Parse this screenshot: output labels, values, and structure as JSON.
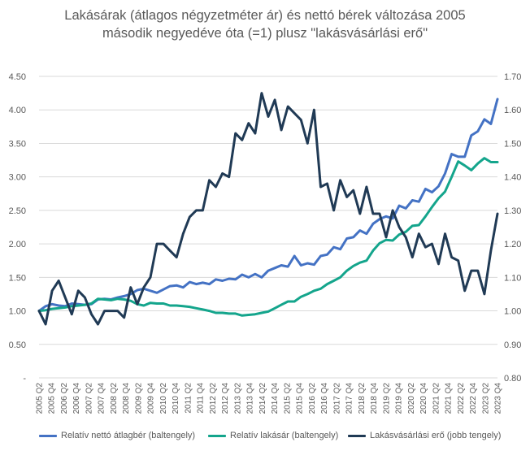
{
  "chart_data": {
    "type": "line",
    "title_line1": "Lakásárak (átlagos négyzetméter ár) és nettó bérek változása 2005",
    "title_line2": "második negyedéve óta (=1) plusz \"lakásvásárlási erő\"",
    "x_tick_labels": [
      "2005 Q2",
      "2005 Q4",
      "2006 Q2",
      "2006 Q4",
      "2007 Q2",
      "2007 Q4",
      "2008 Q2",
      "2008 Q4",
      "2009 Q2",
      "2009 Q4",
      "2010 Q2",
      "2010 Q4",
      "2011 Q2",
      "2011 Q4",
      "2012 Q2",
      "2012 Q4",
      "2013 Q2",
      "2013 Q4",
      "2014 Q2",
      "2014 Q4",
      "2015 Q2",
      "2015 Q4",
      "2016 Q2",
      "2016 Q4",
      "2017 Q2",
      "2017 Q4",
      "2018 Q2",
      "2018 Q4",
      "2019 Q2",
      "2019 Q4",
      "2020 Q2",
      "2020 Q4",
      "2021 Q2",
      "2021 Q4",
      "2022 Q2",
      "2022 Q4",
      "2023 Q2",
      "2023 Q4"
    ],
    "y_left": {
      "ylim": [
        0,
        4.5
      ],
      "tick_labels": [
        "-",
        "0.50",
        "1.00",
        "1.50",
        "2.00",
        "2.50",
        "3.00",
        "3.50",
        "4.00",
        "4.50"
      ]
    },
    "y_right": {
      "ylim": [
        0.8,
        1.7
      ],
      "tick_labels": [
        "0.80",
        "0.90",
        "1.00",
        "1.10",
        "1.20",
        "1.30",
        "1.40",
        "1.50",
        "1.60",
        "1.70"
      ]
    },
    "grid": "horizontal",
    "legend_position": "bottom",
    "series": [
      {
        "name": "Relatív nettó átlagbér (baltengely)",
        "axis": "left",
        "color": "#4472c4",
        "values": [
          1.0,
          1.07,
          1.1,
          1.08,
          1.07,
          1.11,
          1.1,
          1.09,
          1.1,
          1.17,
          1.18,
          1.17,
          1.2,
          1.22,
          1.25,
          1.31,
          1.33,
          1.3,
          1.27,
          1.32,
          1.37,
          1.38,
          1.35,
          1.43,
          1.4,
          1.42,
          1.4,
          1.47,
          1.45,
          1.48,
          1.47,
          1.54,
          1.5,
          1.55,
          1.5,
          1.6,
          1.64,
          1.68,
          1.66,
          1.82,
          1.68,
          1.71,
          1.69,
          1.82,
          1.84,
          1.95,
          1.92,
          2.08,
          2.1,
          2.2,
          2.15,
          2.3,
          2.37,
          2.41,
          2.38,
          2.57,
          2.53,
          2.65,
          2.63,
          2.82,
          2.77,
          2.86,
          3.05,
          3.34,
          3.3,
          3.3,
          3.62,
          3.68,
          3.86,
          3.79,
          4.16
        ]
      },
      {
        "name": "Relatív lakásár (baltengely)",
        "axis": "left",
        "color": "#14a58c",
        "values": [
          1.0,
          1.01,
          1.03,
          1.04,
          1.05,
          1.07,
          1.08,
          1.09,
          1.11,
          1.18,
          1.17,
          1.16,
          1.18,
          1.17,
          1.15,
          1.1,
          1.08,
          1.12,
          1.11,
          1.11,
          1.08,
          1.08,
          1.07,
          1.06,
          1.04,
          1.02,
          1.0,
          0.97,
          0.97,
          0.96,
          0.96,
          0.93,
          0.94,
          0.95,
          0.97,
          0.99,
          1.04,
          1.09,
          1.14,
          1.14,
          1.21,
          1.25,
          1.3,
          1.33,
          1.4,
          1.45,
          1.5,
          1.6,
          1.67,
          1.72,
          1.75,
          1.9,
          2.01,
          2.06,
          2.05,
          2.14,
          2.18,
          2.27,
          2.28,
          2.41,
          2.55,
          2.68,
          2.78,
          3.0,
          3.23,
          3.17,
          3.1,
          3.2,
          3.28,
          3.22,
          3.22
        ]
      },
      {
        "name": "Lakásvásárlási erő (jobb tengely)",
        "axis": "right",
        "color": "#203a55",
        "values": [
          1.0,
          0.96,
          1.06,
          1.09,
          1.04,
          0.99,
          1.06,
          1.04,
          0.99,
          0.96,
          1.0,
          1.0,
          1.0,
          0.98,
          1.07,
          1.02,
          1.07,
          1.1,
          1.2,
          1.2,
          1.18,
          1.16,
          1.23,
          1.28,
          1.3,
          1.3,
          1.39,
          1.37,
          1.41,
          1.4,
          1.53,
          1.51,
          1.56,
          1.53,
          1.65,
          1.58,
          1.63,
          1.54,
          1.61,
          1.59,
          1.57,
          1.5,
          1.6,
          1.37,
          1.38,
          1.3,
          1.39,
          1.34,
          1.36,
          1.29,
          1.37,
          1.29,
          1.29,
          1.22,
          1.3,
          1.25,
          1.22,
          1.16,
          1.23,
          1.19,
          1.2,
          1.14,
          1.23,
          1.16,
          1.15,
          1.06,
          1.12,
          1.12,
          1.05,
          1.18,
          1.29
        ]
      }
    ]
  },
  "legend": {
    "wage": "Relatív nettó átlagbér (baltengely)",
    "price": "Relatív lakásár (baltengely)",
    "power": "Lakásvásárlási erő (jobb tengely)"
  }
}
